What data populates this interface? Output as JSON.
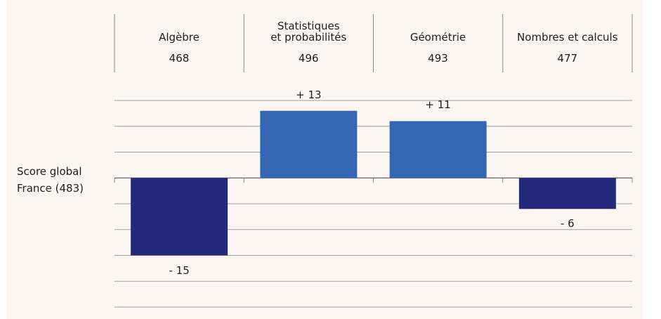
{
  "chart_data": {
    "type": "bar",
    "categories": [
      "Algèbre",
      "Statistiques\net probabilités",
      "Géométrie",
      "Nombres et calculs"
    ],
    "scores": [
      468,
      496,
      493,
      477
    ],
    "baseline_label": "Score global\nFrance (483)",
    "values": [
      -15,
      13,
      11,
      -6
    ],
    "value_labels": [
      "- 15",
      "+ 13",
      "+ 11",
      "- 6"
    ],
    "colors": [
      "#232a7c",
      "#3366b3",
      "#3366b3",
      "#232a7c"
    ],
    "ylim": [
      -25,
      15
    ],
    "yticks": [
      -25,
      -20,
      -15,
      -10,
      -5,
      0,
      5,
      10,
      15
    ],
    "grid": true
  }
}
